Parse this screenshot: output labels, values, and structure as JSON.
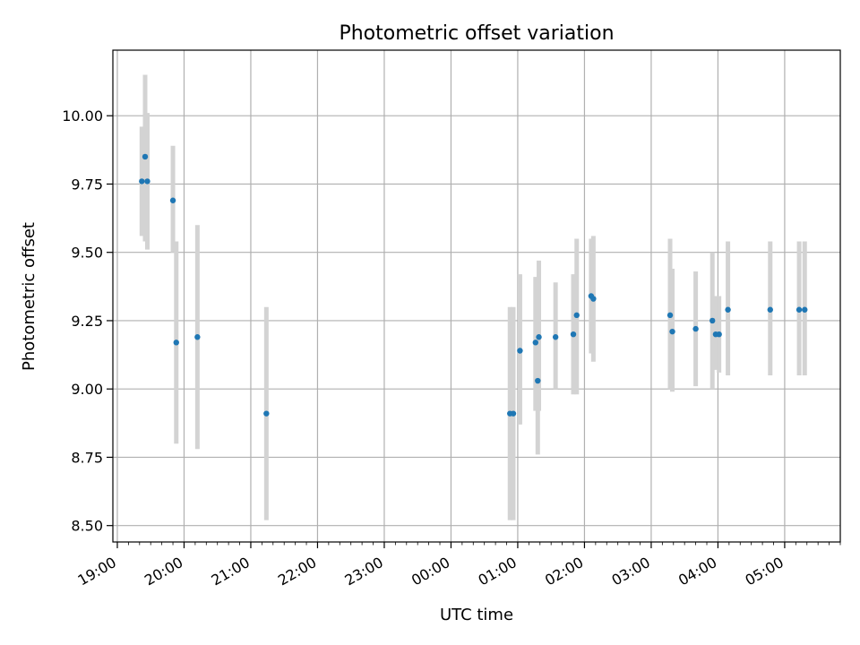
{
  "chart_data": {
    "type": "scatter",
    "title": "Photometric offset variation",
    "xlabel": "UTC time",
    "ylabel": "Photometric offset",
    "x_axis": "time",
    "x_range": [
      "18:56",
      "05:50"
    ],
    "ylim": [
      8.44,
      10.24
    ],
    "grid": true,
    "x_ticks": [
      "19:00",
      "20:00",
      "21:00",
      "22:00",
      "23:00",
      "00:00",
      "01:00",
      "02:00",
      "03:00",
      "04:00",
      "05:00"
    ],
    "y_ticks": [
      "8.50",
      "8.75",
      "9.00",
      "9.25",
      "9.50",
      "9.75",
      "10.00"
    ],
    "colors": {
      "points": "#1f77b4",
      "error_bars": "#d3d3d3",
      "grid": "#b0b0b0"
    },
    "points": [
      {
        "x": "19:22",
        "y": 9.76,
        "low": 9.56,
        "high": 9.96
      },
      {
        "x": "19:25",
        "y": 9.85,
        "low": 9.54,
        "high": 10.15
      },
      {
        "x": "19:27",
        "y": 9.76,
        "low": 9.51,
        "high": 10.01
      },
      {
        "x": "19:50",
        "y": 9.69,
        "low": 9.5,
        "high": 9.89
      },
      {
        "x": "19:53",
        "y": 9.17,
        "low": 8.8,
        "high": 9.54
      },
      {
        "x": "20:12",
        "y": 9.19,
        "low": 8.78,
        "high": 9.6
      },
      {
        "x": "21:14",
        "y": 8.91,
        "low": 8.52,
        "high": 9.3
      },
      {
        "x": "00:53",
        "y": 8.91,
        "low": 8.52,
        "high": 9.3
      },
      {
        "x": "00:56",
        "y": 8.91,
        "low": 8.52,
        "high": 9.3
      },
      {
        "x": "01:02",
        "y": 9.14,
        "low": 8.87,
        "high": 9.42
      },
      {
        "x": "01:16",
        "y": 9.17,
        "low": 8.92,
        "high": 9.41
      },
      {
        "x": "01:18",
        "y": 9.03,
        "low": 8.76,
        "high": 9.31
      },
      {
        "x": "01:19",
        "y": 9.19,
        "low": 8.92,
        "high": 9.47
      },
      {
        "x": "01:34",
        "y": 9.19,
        "low": 9.0,
        "high": 9.39
      },
      {
        "x": "01:50",
        "y": 9.2,
        "low": 8.98,
        "high": 9.42
      },
      {
        "x": "01:53",
        "y": 9.27,
        "low": 8.98,
        "high": 9.55
      },
      {
        "x": "02:06",
        "y": 9.34,
        "low": 9.13,
        "high": 9.55
      },
      {
        "x": "02:08",
        "y": 9.33,
        "low": 9.1,
        "high": 9.56
      },
      {
        "x": "03:17",
        "y": 9.27,
        "low": 9.0,
        "high": 9.55
      },
      {
        "x": "03:19",
        "y": 9.21,
        "low": 8.99,
        "high": 9.44
      },
      {
        "x": "03:40",
        "y": 9.22,
        "low": 9.01,
        "high": 9.43
      },
      {
        "x": "03:55",
        "y": 9.25,
        "low": 9.0,
        "high": 9.5
      },
      {
        "x": "03:58",
        "y": 9.2,
        "low": 9.07,
        "high": 9.34
      },
      {
        "x": "04:01",
        "y": 9.2,
        "low": 9.06,
        "high": 9.34
      },
      {
        "x": "04:09",
        "y": 9.29,
        "low": 9.05,
        "high": 9.54
      },
      {
        "x": "04:47",
        "y": 9.29,
        "low": 9.05,
        "high": 9.54
      },
      {
        "x": "05:13",
        "y": 9.29,
        "low": 9.05,
        "high": 9.54
      },
      {
        "x": "05:18",
        "y": 9.29,
        "low": 9.05,
        "high": 9.54
      }
    ]
  }
}
